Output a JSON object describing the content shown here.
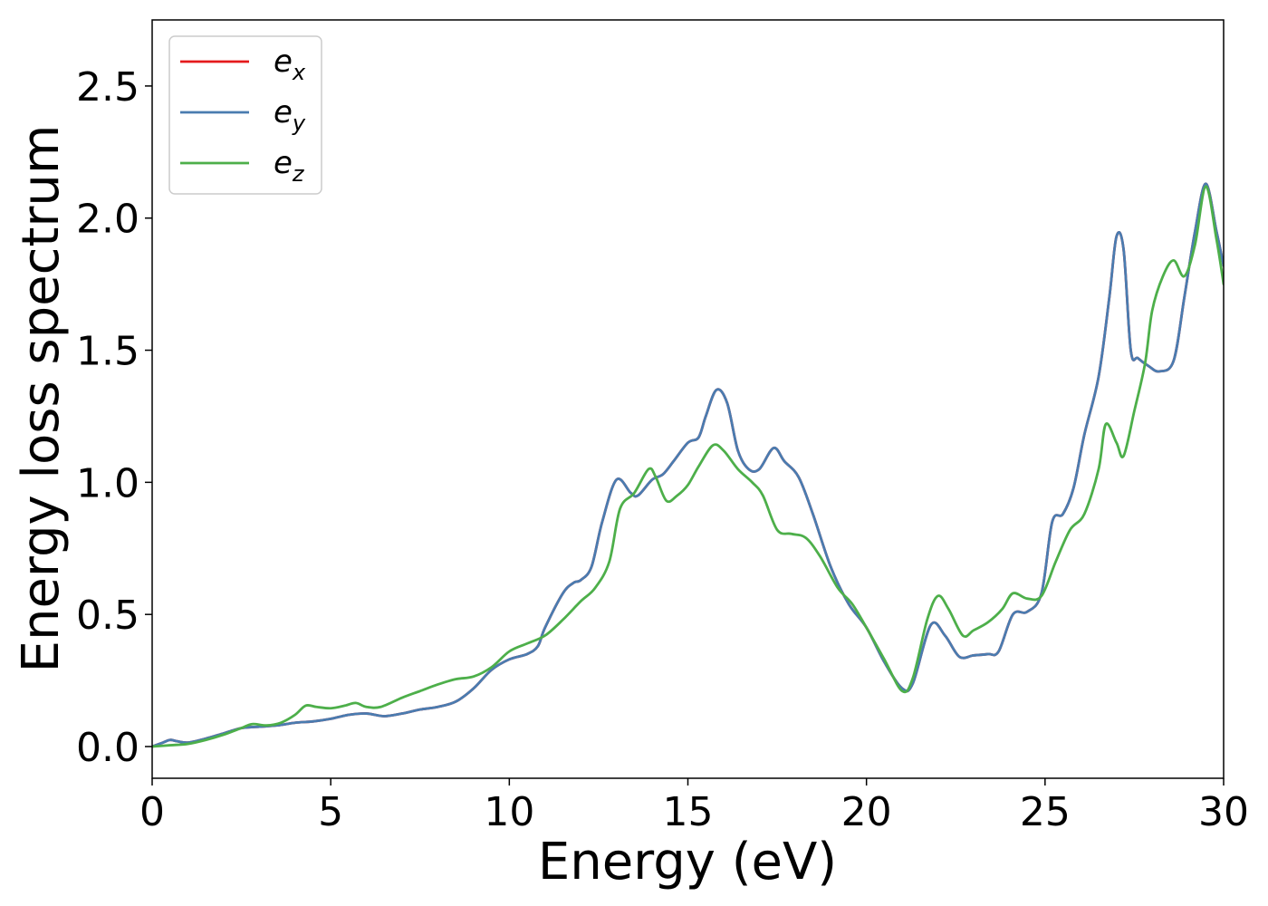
{
  "chart_data": {
    "type": "line",
    "title": "",
    "xlabel": "Energy (eV)",
    "ylabel": "Energy loss spectrum",
    "xlim": [
      0,
      30
    ],
    "ylim": [
      -0.12,
      2.75
    ],
    "xticks": [
      0,
      5,
      10,
      15,
      20,
      25,
      30
    ],
    "xtick_labels": [
      "0",
      "5",
      "10",
      "15",
      "20",
      "25",
      "30"
    ],
    "yticks": [
      0.0,
      0.5,
      1.0,
      1.5,
      2.0,
      2.5
    ],
    "ytick_labels": [
      "0.0",
      "0.5",
      "1.0",
      "1.5",
      "2.0",
      "2.5"
    ],
    "grid": false,
    "legend_position": "top-left",
    "series": [
      {
        "name": "e",
        "subscript": "x",
        "color": "#e41a1c",
        "x": [
          0,
          0.3,
          0.5,
          0.7,
          1.0,
          1.5,
          2.0,
          2.5,
          3.0,
          3.5,
          4.0,
          4.5,
          5.0,
          5.5,
          6.0,
          6.5,
          7.0,
          7.5,
          8.0,
          8.5,
          9.0,
          9.5,
          10.0,
          10.5,
          10.8,
          11.0,
          11.5,
          11.8,
          12.0,
          12.3,
          12.6,
          13.0,
          13.4,
          13.6,
          14.0,
          14.3,
          14.6,
          15.0,
          15.3,
          15.5,
          15.8,
          16.1,
          16.4,
          16.7,
          17.0,
          17.4,
          17.7,
          18.1,
          18.5,
          19.0,
          19.5,
          20.0,
          20.5,
          21.0,
          21.3,
          21.8,
          22.2,
          22.6,
          23.0,
          23.4,
          23.7,
          24.1,
          24.5,
          24.9,
          25.2,
          25.5,
          25.8,
          26.1,
          26.5,
          26.8,
          27.0,
          27.2,
          27.4,
          27.6,
          27.9,
          28.2,
          28.6,
          28.9,
          29.2,
          29.5,
          29.8,
          30.0
        ],
        "y": [
          0.0,
          0.015,
          0.025,
          0.02,
          0.015,
          0.03,
          0.05,
          0.07,
          0.075,
          0.08,
          0.09,
          0.095,
          0.105,
          0.12,
          0.125,
          0.115,
          0.125,
          0.14,
          0.15,
          0.17,
          0.22,
          0.29,
          0.33,
          0.35,
          0.38,
          0.45,
          0.58,
          0.62,
          0.63,
          0.68,
          0.85,
          1.01,
          0.96,
          0.95,
          1.01,
          1.03,
          1.08,
          1.15,
          1.17,
          1.25,
          1.35,
          1.3,
          1.12,
          1.05,
          1.05,
          1.13,
          1.08,
          1.02,
          0.88,
          0.68,
          0.54,
          0.45,
          0.32,
          0.22,
          0.24,
          0.46,
          0.42,
          0.34,
          0.345,
          0.35,
          0.36,
          0.5,
          0.51,
          0.58,
          0.85,
          0.88,
          0.98,
          1.18,
          1.4,
          1.7,
          1.93,
          1.88,
          1.5,
          1.47,
          1.44,
          1.42,
          1.46,
          1.7,
          1.95,
          2.13,
          1.95,
          1.82
        ]
      },
      {
        "name": "e",
        "subscript": "y",
        "color": "#4a7cb0",
        "x": [
          0,
          0.3,
          0.5,
          0.7,
          1.0,
          1.5,
          2.0,
          2.5,
          3.0,
          3.5,
          4.0,
          4.5,
          5.0,
          5.5,
          6.0,
          6.5,
          7.0,
          7.5,
          8.0,
          8.5,
          9.0,
          9.5,
          10.0,
          10.5,
          10.8,
          11.0,
          11.5,
          11.8,
          12.0,
          12.3,
          12.6,
          13.0,
          13.4,
          13.6,
          14.0,
          14.3,
          14.6,
          15.0,
          15.3,
          15.5,
          15.8,
          16.1,
          16.4,
          16.7,
          17.0,
          17.4,
          17.7,
          18.1,
          18.5,
          19.0,
          19.5,
          20.0,
          20.5,
          21.0,
          21.3,
          21.8,
          22.2,
          22.6,
          23.0,
          23.4,
          23.7,
          24.1,
          24.5,
          24.9,
          25.2,
          25.5,
          25.8,
          26.1,
          26.5,
          26.8,
          27.0,
          27.2,
          27.4,
          27.6,
          27.9,
          28.2,
          28.6,
          28.9,
          29.2,
          29.5,
          29.8,
          30.0
        ],
        "y": [
          0.0,
          0.015,
          0.025,
          0.02,
          0.015,
          0.03,
          0.05,
          0.07,
          0.075,
          0.08,
          0.09,
          0.095,
          0.105,
          0.12,
          0.125,
          0.115,
          0.125,
          0.14,
          0.15,
          0.17,
          0.22,
          0.29,
          0.33,
          0.35,
          0.38,
          0.45,
          0.58,
          0.62,
          0.63,
          0.68,
          0.85,
          1.01,
          0.96,
          0.95,
          1.01,
          1.03,
          1.08,
          1.15,
          1.17,
          1.25,
          1.35,
          1.3,
          1.12,
          1.05,
          1.05,
          1.13,
          1.08,
          1.02,
          0.88,
          0.68,
          0.54,
          0.45,
          0.32,
          0.22,
          0.24,
          0.46,
          0.42,
          0.34,
          0.345,
          0.35,
          0.36,
          0.5,
          0.51,
          0.58,
          0.85,
          0.88,
          0.98,
          1.18,
          1.4,
          1.7,
          1.93,
          1.88,
          1.5,
          1.47,
          1.44,
          1.42,
          1.46,
          1.7,
          1.95,
          2.13,
          1.95,
          1.82
        ]
      },
      {
        "name": "e",
        "subscript": "z",
        "color": "#4daf4a",
        "x": [
          0,
          0.5,
          1.0,
          1.5,
          2.0,
          2.5,
          2.8,
          3.2,
          3.6,
          4.0,
          4.3,
          4.6,
          5.0,
          5.4,
          5.7,
          6.0,
          6.4,
          7.0,
          7.5,
          8.0,
          8.5,
          9.0,
          9.5,
          10.0,
          10.5,
          11.0,
          11.5,
          12.0,
          12.4,
          12.8,
          13.1,
          13.5,
          13.9,
          14.1,
          14.4,
          14.7,
          15.0,
          15.3,
          15.7,
          16.0,
          16.4,
          16.8,
          17.1,
          17.5,
          17.9,
          18.3,
          18.7,
          19.2,
          19.6,
          20.0,
          20.5,
          21.0,
          21.3,
          21.7,
          22.0,
          22.3,
          22.7,
          23.0,
          23.4,
          23.8,
          24.1,
          24.5,
          24.9,
          25.3,
          25.7,
          26.1,
          26.5,
          26.7,
          27.0,
          27.2,
          27.5,
          27.8,
          28.0,
          28.3,
          28.6,
          28.9,
          29.2,
          29.5,
          29.8,
          30.0
        ],
        "y": [
          0.0,
          0.005,
          0.01,
          0.025,
          0.045,
          0.07,
          0.085,
          0.08,
          0.09,
          0.12,
          0.155,
          0.15,
          0.145,
          0.155,
          0.165,
          0.15,
          0.15,
          0.185,
          0.21,
          0.235,
          0.255,
          0.265,
          0.3,
          0.36,
          0.39,
          0.42,
          0.48,
          0.55,
          0.6,
          0.7,
          0.9,
          0.96,
          1.05,
          1.02,
          0.93,
          0.95,
          0.99,
          1.06,
          1.14,
          1.12,
          1.05,
          1.0,
          0.95,
          0.82,
          0.805,
          0.79,
          0.72,
          0.6,
          0.54,
          0.45,
          0.33,
          0.21,
          0.26,
          0.48,
          0.57,
          0.52,
          0.42,
          0.44,
          0.47,
          0.52,
          0.58,
          0.56,
          0.57,
          0.7,
          0.82,
          0.88,
          1.05,
          1.22,
          1.15,
          1.1,
          1.27,
          1.45,
          1.65,
          1.78,
          1.84,
          1.78,
          1.9,
          2.12,
          1.92,
          1.75
        ]
      }
    ]
  }
}
